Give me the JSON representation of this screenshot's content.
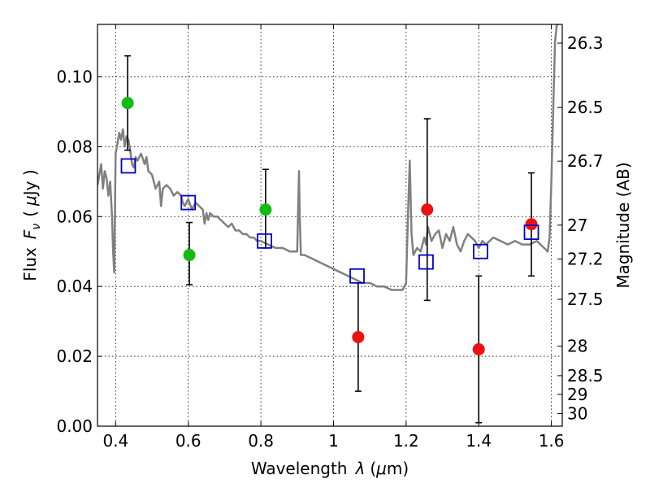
{
  "chart_data": {
    "type": "scatter",
    "xlabel_prefix": "Wavelength",
    "xlabel_symbol": "λ",
    "xlabel_unit_open": "(",
    "xlabel_unit_mu": "μ",
    "xlabel_unit_rest": "m)",
    "ylabel_prefix": "Flux",
    "ylabel_symbol": "F",
    "ylabel_subscript": "ν",
    "ylabel_unit_open": "(",
    "ylabel_unit_mu": "μ",
    "ylabel_unit_rest": "Jy )",
    "y2label": "Magnitude (AB)",
    "xlim": [
      0.35,
      1.63
    ],
    "ylim": [
      0.0,
      0.115
    ],
    "xticks": [
      {
        "value": 0.4,
        "label": "0.4"
      },
      {
        "value": 0.6,
        "label": "0.6"
      },
      {
        "value": 0.8,
        "label": "0.8"
      },
      {
        "value": 1.0,
        "label": "1"
      },
      {
        "value": 1.2,
        "label": "1.2"
      },
      {
        "value": 1.4,
        "label": "1.4"
      },
      {
        "value": 1.6,
        "label": "1.6"
      }
    ],
    "yticks": [
      {
        "value": 0.0,
        "label": "0.00"
      },
      {
        "value": 0.02,
        "label": "0.02"
      },
      {
        "value": 0.04,
        "label": "0.04"
      },
      {
        "value": 0.06,
        "label": "0.06"
      },
      {
        "value": 0.08,
        "label": "0.08"
      },
      {
        "value": 0.1,
        "label": "0.10"
      }
    ],
    "magnitude_ticks": [
      {
        "value": 26.3,
        "label": "26.3"
      },
      {
        "value": 26.5,
        "label": "26.5"
      },
      {
        "value": 26.7,
        "label": "26.7"
      },
      {
        "value": 27.0,
        "label": "27"
      },
      {
        "value": 27.2,
        "label": "27.2"
      },
      {
        "value": 27.5,
        "label": "27.5"
      },
      {
        "value": 28.0,
        "label": "28"
      },
      {
        "value": 28.5,
        "label": "28.5"
      },
      {
        "value": 29.0,
        "label": "29"
      },
      {
        "value": 30.0,
        "label": "30"
      }
    ],
    "grid": true,
    "spectrum": {
      "color": "#808080",
      "x": [
        0.35,
        0.36,
        0.365,
        0.37,
        0.375,
        0.38,
        0.385,
        0.39,
        0.393,
        0.396,
        0.4,
        0.405,
        0.41,
        0.415,
        0.42,
        0.425,
        0.43,
        0.435,
        0.44,
        0.445,
        0.45,
        0.455,
        0.46,
        0.47,
        0.48,
        0.485,
        0.49,
        0.5,
        0.51,
        0.52,
        0.525,
        0.53,
        0.54,
        0.55,
        0.56,
        0.57,
        0.58,
        0.585,
        0.59,
        0.6,
        0.61,
        0.62,
        0.63,
        0.64,
        0.645,
        0.65,
        0.655,
        0.66,
        0.67,
        0.68,
        0.69,
        0.7,
        0.71,
        0.72,
        0.73,
        0.74,
        0.75,
        0.76,
        0.77,
        0.78,
        0.79,
        0.8,
        0.82,
        0.84,
        0.86,
        0.88,
        0.9,
        0.905,
        0.907,
        0.91,
        0.92,
        0.94,
        0.96,
        0.98,
        1.0,
        1.02,
        1.04,
        1.06,
        1.08,
        1.1,
        1.12,
        1.14,
        1.16,
        1.18,
        1.19,
        1.2,
        1.205,
        1.21,
        1.215,
        1.22,
        1.23,
        1.24,
        1.25,
        1.255,
        1.26,
        1.27,
        1.28,
        1.29,
        1.3,
        1.31,
        1.32,
        1.33,
        1.34,
        1.35,
        1.36,
        1.37,
        1.38,
        1.39,
        1.4,
        1.41,
        1.42,
        1.43,
        1.44,
        1.46,
        1.48,
        1.5,
        1.52,
        1.54,
        1.56,
        1.58,
        1.59,
        1.595,
        1.6,
        1.605,
        1.61,
        1.615,
        1.62
      ],
      "y": [
        0.069,
        0.075,
        0.068,
        0.073,
        0.071,
        0.066,
        0.07,
        0.06,
        0.05,
        0.044,
        0.078,
        0.081,
        0.084,
        0.082,
        0.085,
        0.08,
        0.083,
        0.082,
        0.079,
        0.075,
        0.074,
        0.077,
        0.076,
        0.078,
        0.075,
        0.077,
        0.073,
        0.072,
        0.068,
        0.07,
        0.063,
        0.068,
        0.069,
        0.068,
        0.066,
        0.067,
        0.066,
        0.064,
        0.063,
        0.065,
        0.062,
        0.064,
        0.063,
        0.062,
        0.058,
        0.061,
        0.059,
        0.061,
        0.06,
        0.06,
        0.059,
        0.058,
        0.057,
        0.058,
        0.056,
        0.056,
        0.055,
        0.055,
        0.054,
        0.054,
        0.053,
        0.053,
        0.052,
        0.051,
        0.051,
        0.05,
        0.05,
        0.073,
        0.06,
        0.049,
        0.049,
        0.048,
        0.047,
        0.046,
        0.045,
        0.044,
        0.043,
        0.042,
        0.041,
        0.041,
        0.04,
        0.04,
        0.039,
        0.039,
        0.039,
        0.041,
        0.06,
        0.076,
        0.055,
        0.049,
        0.051,
        0.05,
        0.054,
        0.052,
        0.057,
        0.053,
        0.055,
        0.056,
        0.051,
        0.055,
        0.053,
        0.057,
        0.052,
        0.05,
        0.053,
        0.055,
        0.054,
        0.053,
        0.051,
        0.053,
        0.052,
        0.053,
        0.054,
        0.053,
        0.052,
        0.053,
        0.052,
        0.052,
        0.053,
        0.051,
        0.05,
        0.054,
        0.07,
        0.09,
        0.11,
        0.115,
        0.115
      ]
    },
    "model_points": {
      "color": "#0000cc",
      "marker": "open-square",
      "x": [
        0.435,
        0.6,
        0.81,
        1.065,
        1.255,
        1.405,
        1.545
      ],
      "y": [
        0.0745,
        0.064,
        0.053,
        0.043,
        0.047,
        0.05,
        0.0555
      ]
    },
    "observed_points": [
      {
        "x": 0.433,
        "y": 0.0925,
        "err_low": 0.0135,
        "err_high": 0.0135,
        "color": "#11bb11"
      },
      {
        "x": 0.603,
        "y": 0.049,
        "err_low": 0.0085,
        "err_high": 0.0093,
        "color": "#11bb11"
      },
      {
        "x": 0.813,
        "y": 0.062,
        "err_low": 0.011,
        "err_high": 0.0115,
        "color": "#11bb11"
      },
      {
        "x": 1.068,
        "y": 0.0255,
        "err_low": 0.0155,
        "err_high": 0.0155,
        "color": "#ee1111"
      },
      {
        "x": 1.258,
        "y": 0.062,
        "err_low": 0.026,
        "err_high": 0.026,
        "color": "#ee1111"
      },
      {
        "x": 1.4,
        "y": 0.022,
        "err_low": 0.021,
        "err_high": 0.021,
        "color": "#ee1111"
      },
      {
        "x": 1.545,
        "y": 0.0578,
        "err_low": 0.0148,
        "err_high": 0.0147,
        "color": "#ee1111"
      }
    ]
  }
}
